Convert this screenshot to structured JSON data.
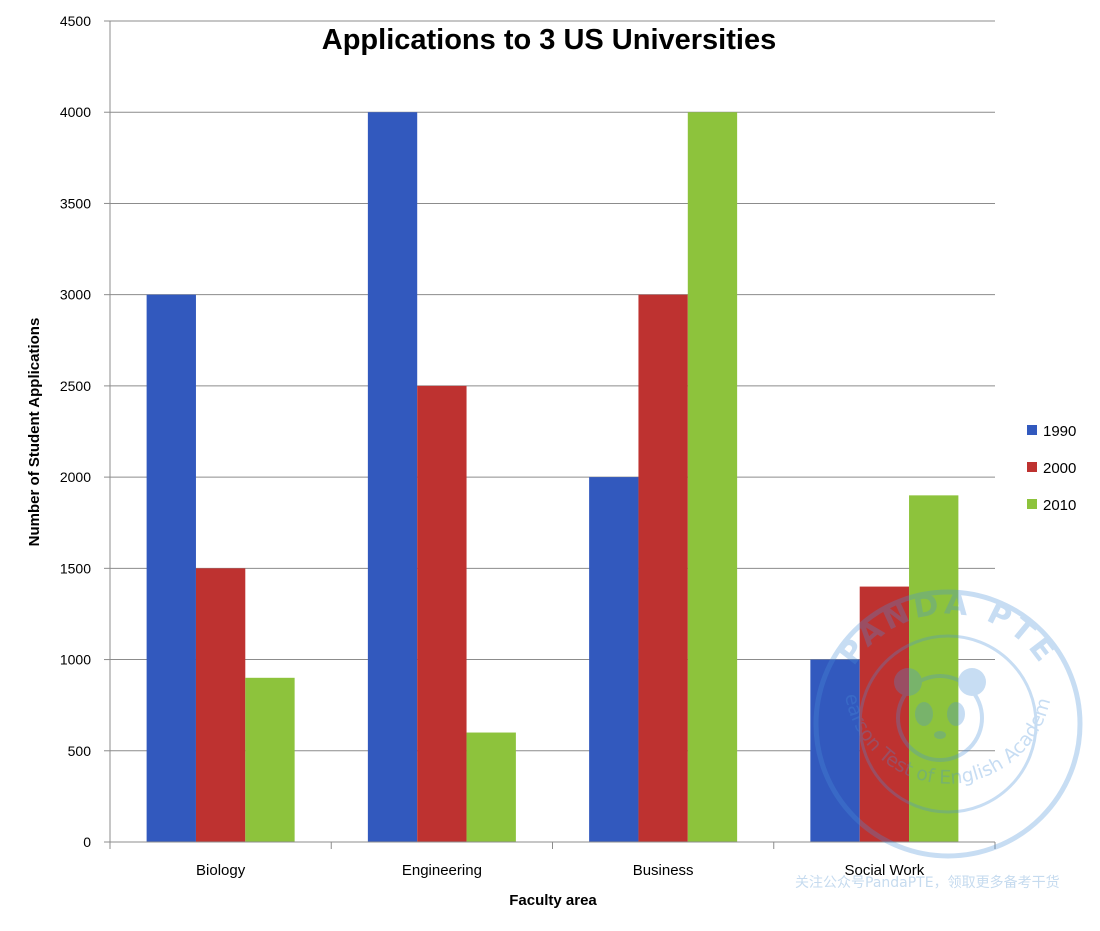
{
  "chart_data": {
    "type": "bar",
    "title": "Applications to 3 US Universities",
    "xlabel": "Faculty area",
    "ylabel": "Number of Student Applications",
    "categories": [
      "Biology",
      "Engineering",
      "Business",
      "Social Work"
    ],
    "series": [
      {
        "name": "1990",
        "color": "#3259BE",
        "values": [
          3000,
          4000,
          2000,
          1000
        ]
      },
      {
        "name": "2000",
        "color": "#BE3230",
        "values": [
          1500,
          2500,
          3000,
          1400
        ]
      },
      {
        "name": "2010",
        "color": "#8DC33C",
        "values": [
          900,
          600,
          4000,
          1900
        ]
      }
    ],
    "ylim": [
      0,
      4500
    ],
    "yticks": [
      "0",
      "500",
      "1000",
      "1500",
      "2000",
      "2500",
      "3000",
      "3500",
      "4000",
      "4500"
    ],
    "grid": true,
    "legend": "right"
  },
  "watermark": {
    "arc_top": "PANDA PTE",
    "arc_bottom": "Pearson Test of English Academic",
    "footer": "关注公众号PandaPTE，领取更多备考干货"
  }
}
